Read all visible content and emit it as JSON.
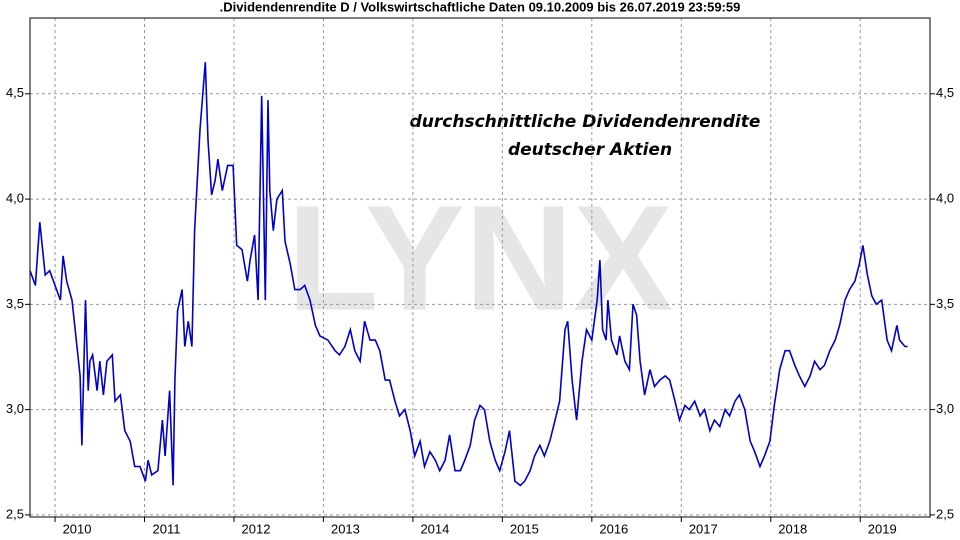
{
  "chart_data": {
    "type": "line",
    "title": ".Dividendenrendite D / Volkswirtschaftliche Daten 09.10.2009 bis 26.07.2019 23:59:59",
    "annotations": [
      "durchschnittliche Dividendenrendite",
      "deutscher Aktien"
    ],
    "watermark": "LYNX",
    "color": "#0000cc",
    "grid": true,
    "xlim": [
      2009.72,
      2019.78
    ],
    "ylim": [
      2.49,
      4.86
    ],
    "xticks": [
      2010,
      2011,
      2012,
      2013,
      2014,
      2015,
      2016,
      2017,
      2018,
      2019
    ],
    "yticks": [
      {
        "value": 2.5,
        "label": "2,5"
      },
      {
        "value": 3.0,
        "label": "3,0"
      },
      {
        "value": 3.5,
        "label": "3,5"
      },
      {
        "value": 4.0,
        "label": "4,0"
      },
      {
        "value": 4.5,
        "label": "4,5"
      }
    ],
    "x": [
      2009.72,
      2009.78,
      2009.83,
      2009.89,
      2009.94,
      2010.0,
      2010.06,
      2010.09,
      2010.13,
      2010.19,
      2010.25,
      2010.28,
      2010.3,
      2010.34,
      2010.37,
      2010.39,
      2010.42,
      2010.47,
      2010.5,
      2010.54,
      2010.58,
      2010.64,
      2010.67,
      2010.73,
      2010.78,
      2010.84,
      2010.89,
      2010.95,
      2011.01,
      2011.04,
      2011.08,
      2011.15,
      2011.2,
      2011.23,
      2011.28,
      2011.32,
      2011.34,
      2011.37,
      2011.42,
      2011.45,
      2011.49,
      2011.53,
      2011.56,
      2011.62,
      2011.68,
      2011.71,
      2011.75,
      2011.79,
      2011.82,
      2011.87,
      2011.93,
      2011.99,
      2012.03,
      2012.09,
      2012.15,
      2012.18,
      2012.23,
      2012.27,
      2012.31,
      2012.35,
      2012.38,
      2012.4,
      2012.44,
      2012.48,
      2012.54,
      2012.57,
      2012.63,
      2012.68,
      2012.74,
      2012.79,
      2012.85,
      2012.91,
      2012.96,
      2013.05,
      2013.13,
      2013.18,
      2013.24,
      2013.3,
      2013.35,
      2013.41,
      2013.46,
      2013.52,
      2013.58,
      2013.63,
      2013.69,
      2013.74,
      2013.8,
      2013.85,
      2013.91,
      2013.97,
      2014.02,
      2014.08,
      2014.13,
      2014.19,
      2014.25,
      2014.3,
      2014.36,
      2014.41,
      2014.47,
      2014.53,
      2014.58,
      2014.64,
      2014.69,
      2014.75,
      2014.8,
      2014.86,
      2014.92,
      2014.97,
      2015.03,
      2015.08,
      2015.14,
      2015.2,
      2015.25,
      2015.31,
      2015.36,
      2015.42,
      2015.47,
      2015.53,
      2015.59,
      2015.64,
      2015.7,
      2015.73,
      2015.78,
      2015.83,
      2015.89,
      2015.94,
      2016.0,
      2016.06,
      2016.09,
      2016.12,
      2016.16,
      2016.18,
      2016.22,
      2016.28,
      2016.31,
      2016.37,
      2016.42,
      2016.46,
      2016.5,
      2016.54,
      2016.59,
      2016.65,
      2016.7,
      2016.76,
      2016.82,
      2016.87,
      2016.93,
      2016.98,
      2017.04,
      2017.09,
      2017.15,
      2017.21,
      2017.26,
      2017.32,
      2017.37,
      2017.43,
      2017.49,
      2017.54,
      2017.6,
      2017.65,
      2017.71,
      2017.77,
      2017.82,
      2017.88,
      2017.93,
      2017.99,
      2018.04,
      2018.1,
      2018.16,
      2018.21,
      2018.27,
      2018.32,
      2018.38,
      2018.44,
      2018.49,
      2018.55,
      2018.6,
      2018.66,
      2018.72,
      2018.77,
      2018.83,
      2018.88,
      2018.94,
      2018.99,
      2019.03,
      2019.08,
      2019.13,
      2019.18,
      2019.24,
      2019.3,
      2019.35,
      2019.41,
      2019.44,
      2019.5,
      2019.53
    ],
    "values": [
      3.66,
      3.59,
      3.89,
      3.64,
      3.66,
      3.59,
      3.52,
      3.73,
      3.61,
      3.52,
      3.28,
      3.16,
      2.83,
      3.52,
      3.09,
      3.23,
      3.26,
      3.09,
      3.23,
      3.07,
      3.23,
      3.26,
      3.04,
      3.07,
      2.9,
      2.85,
      2.73,
      2.73,
      2.66,
      2.76,
      2.69,
      2.71,
      2.95,
      2.78,
      3.09,
      2.64,
      3.14,
      3.47,
      3.57,
      3.3,
      3.42,
      3.3,
      3.85,
      4.33,
      4.65,
      4.28,
      4.02,
      4.09,
      4.19,
      4.04,
      4.16,
      4.16,
      3.78,
      3.76,
      3.61,
      3.71,
      3.83,
      3.52,
      4.49,
      3.52,
      4.47,
      4.04,
      3.85,
      4.0,
      4.04,
      3.8,
      3.69,
      3.57,
      3.57,
      3.59,
      3.52,
      3.4,
      3.35,
      3.33,
      3.28,
      3.26,
      3.3,
      3.38,
      3.28,
      3.23,
      3.42,
      3.33,
      3.33,
      3.28,
      3.14,
      3.14,
      3.04,
      2.97,
      3.0,
      2.9,
      2.78,
      2.85,
      2.73,
      2.8,
      2.76,
      2.71,
      2.76,
      2.88,
      2.71,
      2.71,
      2.76,
      2.83,
      2.95,
      3.02,
      3.0,
      2.85,
      2.76,
      2.71,
      2.8,
      2.9,
      2.66,
      2.64,
      2.66,
      2.71,
      2.78,
      2.83,
      2.78,
      2.85,
      2.95,
      3.04,
      3.38,
      3.42,
      3.14,
      2.95,
      3.23,
      3.38,
      3.33,
      3.52,
      3.71,
      3.38,
      3.33,
      3.52,
      3.33,
      3.26,
      3.35,
      3.23,
      3.19,
      3.5,
      3.45,
      3.23,
      3.07,
      3.19,
      3.11,
      3.14,
      3.16,
      3.14,
      3.04,
      2.95,
      3.02,
      3.0,
      3.04,
      2.97,
      3.0,
      2.9,
      2.95,
      2.92,
      3.0,
      2.97,
      3.04,
      3.07,
      3.0,
      2.85,
      2.8,
      2.73,
      2.78,
      2.85,
      3.02,
      3.19,
      3.28,
      3.28,
      3.21,
      3.16,
      3.11,
      3.16,
      3.23,
      3.19,
      3.21,
      3.28,
      3.33,
      3.4,
      3.52,
      3.57,
      3.61,
      3.69,
      3.78,
      3.64,
      3.54,
      3.5,
      3.52,
      3.33,
      3.28,
      3.4,
      3.33,
      3.3,
      3.3
    ]
  }
}
